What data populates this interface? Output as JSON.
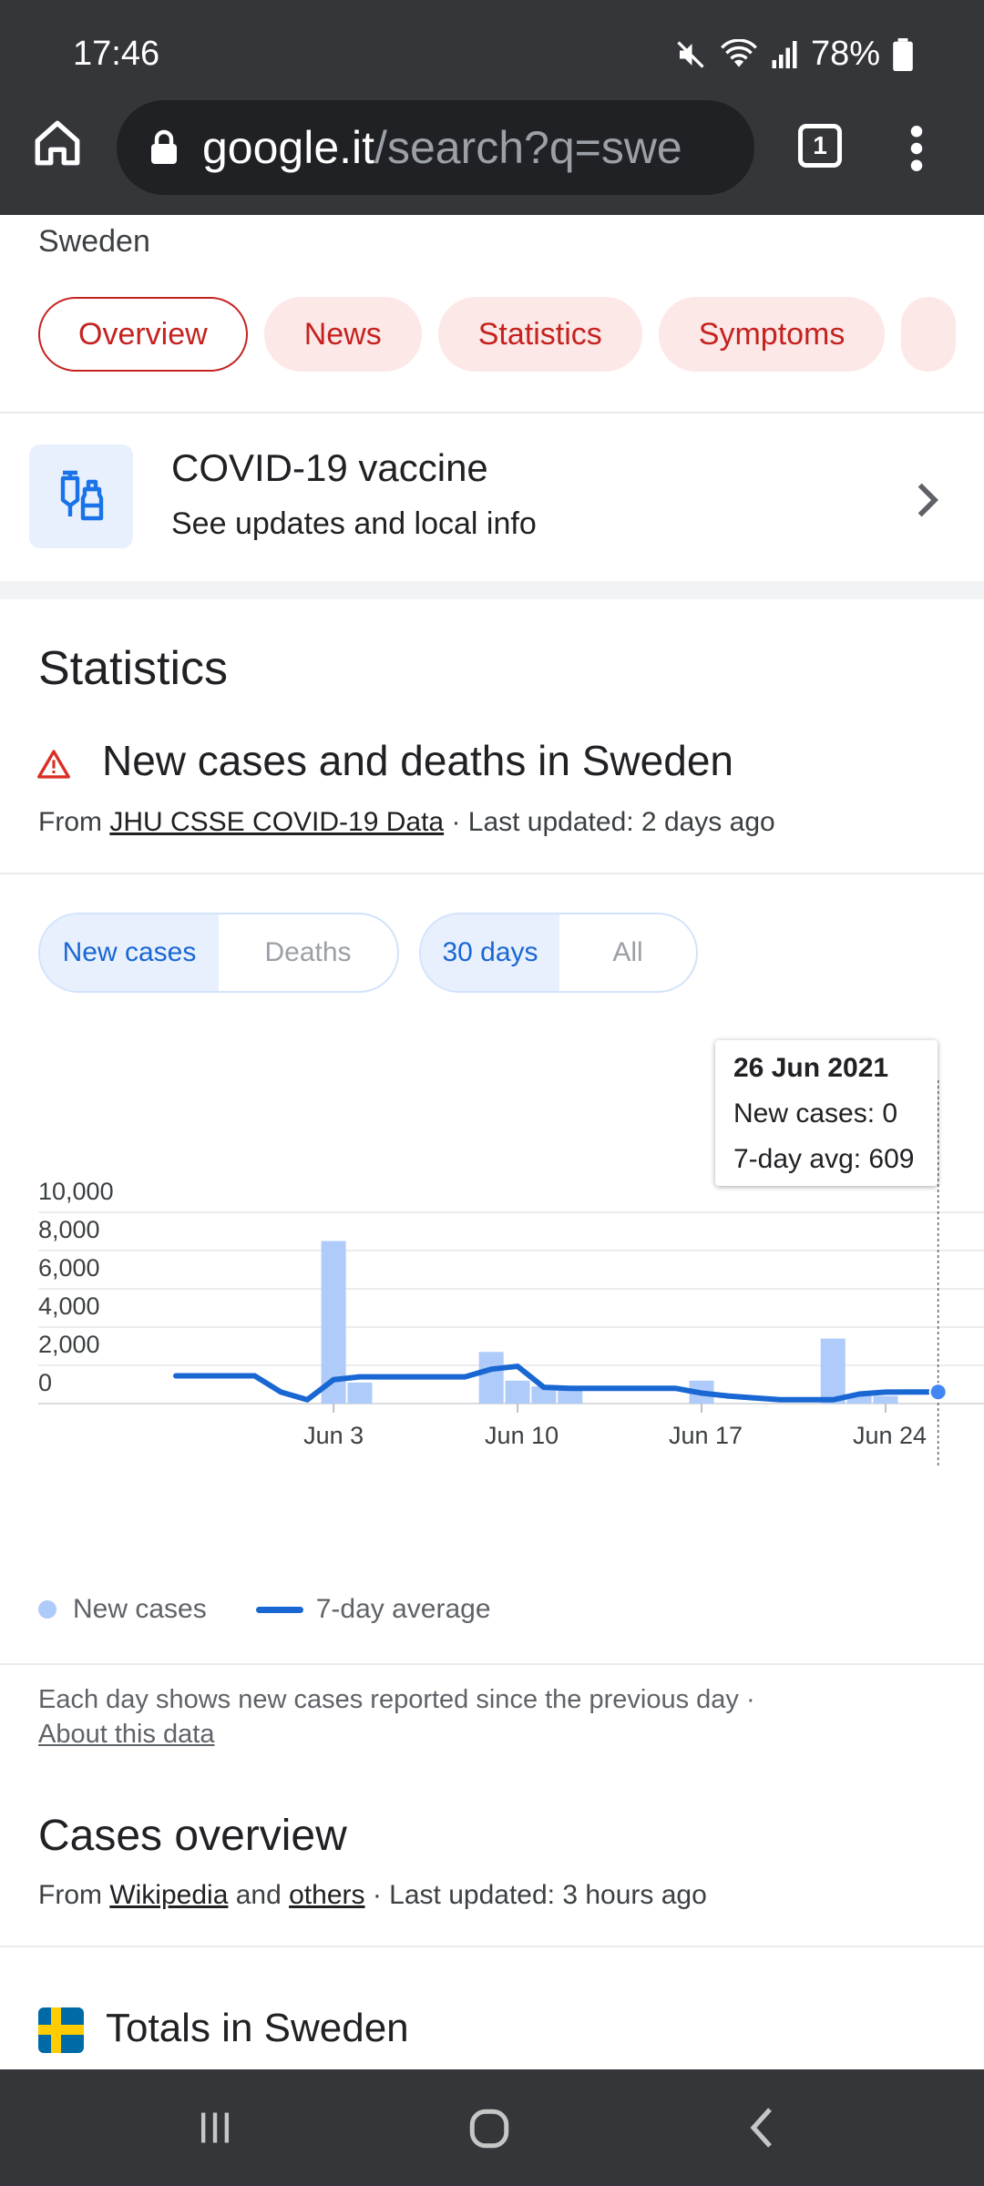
{
  "status_bar": {
    "time": "17:46",
    "battery": "78%"
  },
  "browser": {
    "url_domain": "google.it",
    "url_rest": "/search?q=swe",
    "tab_count": "1"
  },
  "header": {
    "country": "Sweden",
    "chips": [
      "Overview",
      "News",
      "Statistics",
      "Symptoms"
    ]
  },
  "vaccine_card": {
    "title": "COVID-19 vaccine",
    "subtitle": "See updates and local info"
  },
  "statistics": {
    "title": "Statistics",
    "chart_title": "New cases and deaths in Sweden",
    "source_prefix": "From ",
    "source_link": "JHU CSSE COVID-19 Data",
    "source_suffix": " · Last updated: 2 days ago",
    "metric_toggle": [
      "New cases",
      "Deaths"
    ],
    "range_toggle": [
      "30 days",
      "All"
    ],
    "tooltip": {
      "date": "26 Jun 2021",
      "new_cases": "New cases: 0",
      "avg": "7-day avg: 609"
    },
    "legend": {
      "bars": "New cases",
      "line": "7-day average"
    },
    "note": "Each day shows new cases reported since the previous day  ·",
    "about_link": "About this data"
  },
  "chart_data": {
    "type": "bar",
    "title": "New cases and deaths in Sweden",
    "x_ticks": [
      "Jun 3",
      "Jun 10",
      "Jun 17",
      "Jun 24"
    ],
    "y_ticks": [
      "0",
      "2,000",
      "4,000",
      "6,000",
      "8,000",
      "10,000"
    ],
    "ylim": [
      0,
      10000
    ],
    "grid": true,
    "legend_position": "bottom-left",
    "days": [
      "May 28",
      "May 29",
      "May 30",
      "May 31",
      "Jun 1",
      "Jun 2",
      "Jun 3",
      "Jun 4",
      "Jun 5",
      "Jun 6",
      "Jun 7",
      "Jun 8",
      "Jun 9",
      "Jun 10",
      "Jun 11",
      "Jun 12",
      "Jun 13",
      "Jun 14",
      "Jun 15",
      "Jun 16",
      "Jun 17",
      "Jun 18",
      "Jun 19",
      "Jun 20",
      "Jun 21",
      "Jun 22",
      "Jun 23",
      "Jun 24",
      "Jun 25",
      "Jun 26"
    ],
    "series": [
      {
        "name": "New cases",
        "values": [
          0,
          0,
          0,
          0,
          0,
          0,
          8500,
          1100,
          0,
          0,
          0,
          0,
          2700,
          1200,
          900,
          800,
          0,
          0,
          0,
          0,
          1200,
          0,
          0,
          0,
          0,
          3400,
          500,
          400,
          0,
          0
        ]
      },
      {
        "name": "7-day average",
        "values": [
          1450,
          1450,
          1450,
          1450,
          600,
          200,
          1250,
          1400,
          1400,
          1400,
          1400,
          1400,
          1800,
          1950,
          850,
          800,
          800,
          800,
          800,
          800,
          550,
          400,
          300,
          200,
          200,
          200,
          500,
          600,
          609,
          609
        ]
      }
    ]
  },
  "cases_overview": {
    "title": "Cases overview",
    "src_prefix": "From ",
    "src_link1": "Wikipedia",
    "src_and": " and ",
    "src_link2": "others",
    "src_suffix": " · Last updated: 3 hours ago",
    "totals": "Totals in Sweden"
  }
}
